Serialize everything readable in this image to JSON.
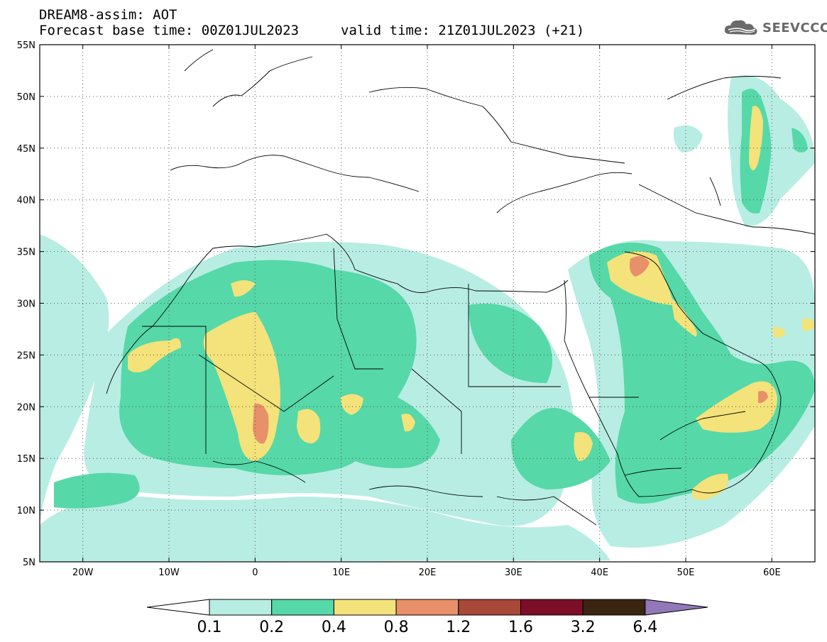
{
  "header": {
    "line1": "DREAM8-assim: AOT",
    "line2": "Forecast base time: 00Z01JUL2023",
    "valid": "valid time: 21Z01JUL2023 (+21)"
  },
  "logo": {
    "text": "SEEVCCC",
    "icon": "cloud-logo-icon"
  },
  "map": {
    "lon_range": [
      -25,
      65
    ],
    "lat_range": [
      5,
      55
    ],
    "lon_ticks": [
      {
        "value": -20,
        "label": "20W"
      },
      {
        "value": -10,
        "label": "10W"
      },
      {
        "value": 0,
        "label": "0"
      },
      {
        "value": 10,
        "label": "10E"
      },
      {
        "value": 20,
        "label": "20E"
      },
      {
        "value": 30,
        "label": "30E"
      },
      {
        "value": 40,
        "label": "40E"
      },
      {
        "value": 50,
        "label": "50E"
      },
      {
        "value": 60,
        "label": "60E"
      }
    ],
    "lat_ticks": [
      {
        "value": 55,
        "label": "55N"
      },
      {
        "value": 50,
        "label": "50N"
      },
      {
        "value": 45,
        "label": "45N"
      },
      {
        "value": 40,
        "label": "40N"
      },
      {
        "value": 35,
        "label": "35N"
      },
      {
        "value": 30,
        "label": "30N"
      },
      {
        "value": 25,
        "label": "25N"
      },
      {
        "value": 20,
        "label": "20N"
      },
      {
        "value": 15,
        "label": "15N"
      },
      {
        "value": 10,
        "label": "10N"
      },
      {
        "value": 5,
        "label": "5N"
      }
    ],
    "grid": true
  },
  "colorbar": {
    "colors": [
      "#ffffff",
      "#b8ede3",
      "#56d8a8",
      "#f4e27a",
      "#e8906a",
      "#a84838",
      "#7c0e28",
      "#3a2412",
      "#9278b8"
    ],
    "labels": [
      "0.1",
      "0.2",
      "0.4",
      "0.8",
      "1.2",
      "1.6",
      "3.2",
      "6.4"
    ]
  }
}
